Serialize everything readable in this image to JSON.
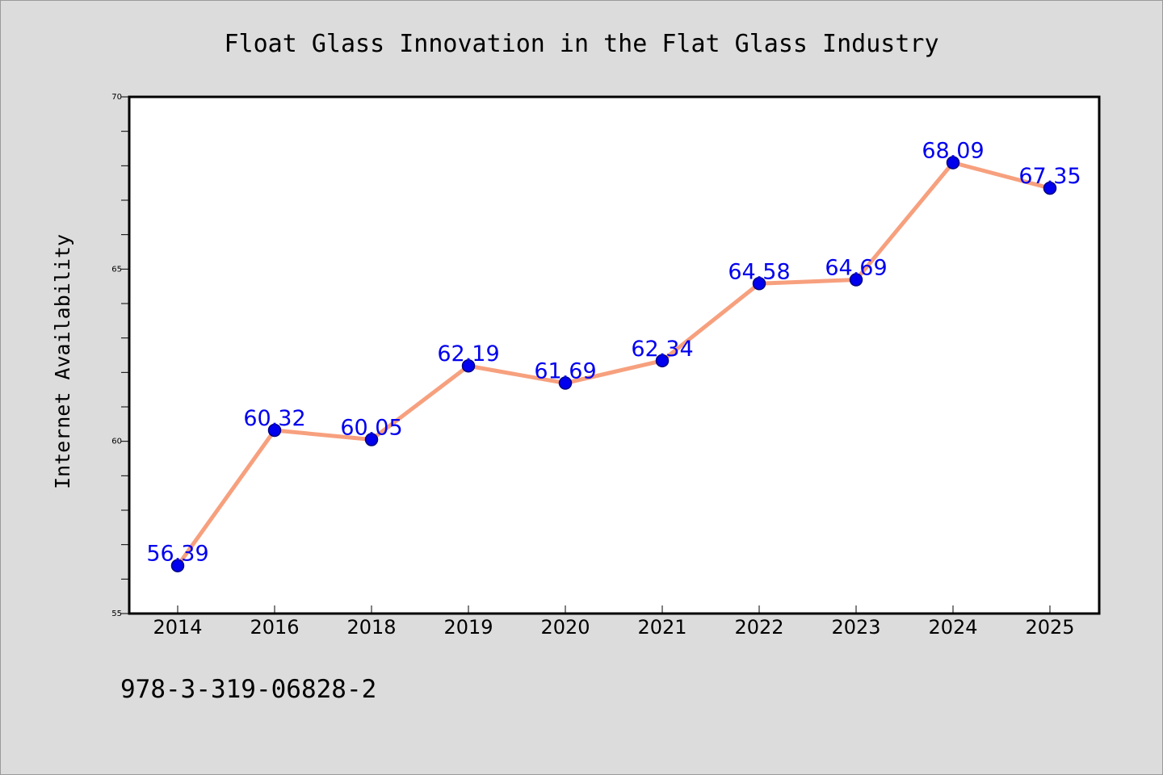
{
  "chart_data": {
    "type": "line",
    "title": "Float Glass Innovation in the Flat Glass Industry",
    "xlabel": "",
    "ylabel": "Internet Availability",
    "categories": [
      "2014",
      "2016",
      "2018",
      "2019",
      "2020",
      "2021",
      "2022",
      "2023",
      "2024",
      "2025"
    ],
    "series": [
      {
        "values": [
          56.39,
          60.32,
          60.05,
          62.19,
          61.69,
          62.34,
          64.58,
          64.69,
          68.09,
          67.35
        ],
        "data_labels": [
          "56.39",
          "60.32",
          "60.05",
          "62.19",
          "61.69",
          "62.34",
          "64.58",
          "64.69",
          "68.09",
          "67.35"
        ]
      }
    ],
    "ylim": [
      55,
      70
    ],
    "yticks": [
      "55",
      "60",
      "65",
      "70"
    ],
    "y_minor_step": 1,
    "grid": false,
    "legend": "none",
    "colors": {
      "line": "#f7a07e",
      "marker": "#0000ee",
      "marker_edge": "#000080",
      "data_label": "#0000ee",
      "background": "#dcdcdc",
      "plot_area": "#ffffff"
    }
  },
  "footnote": "978-3-319-06828-2"
}
